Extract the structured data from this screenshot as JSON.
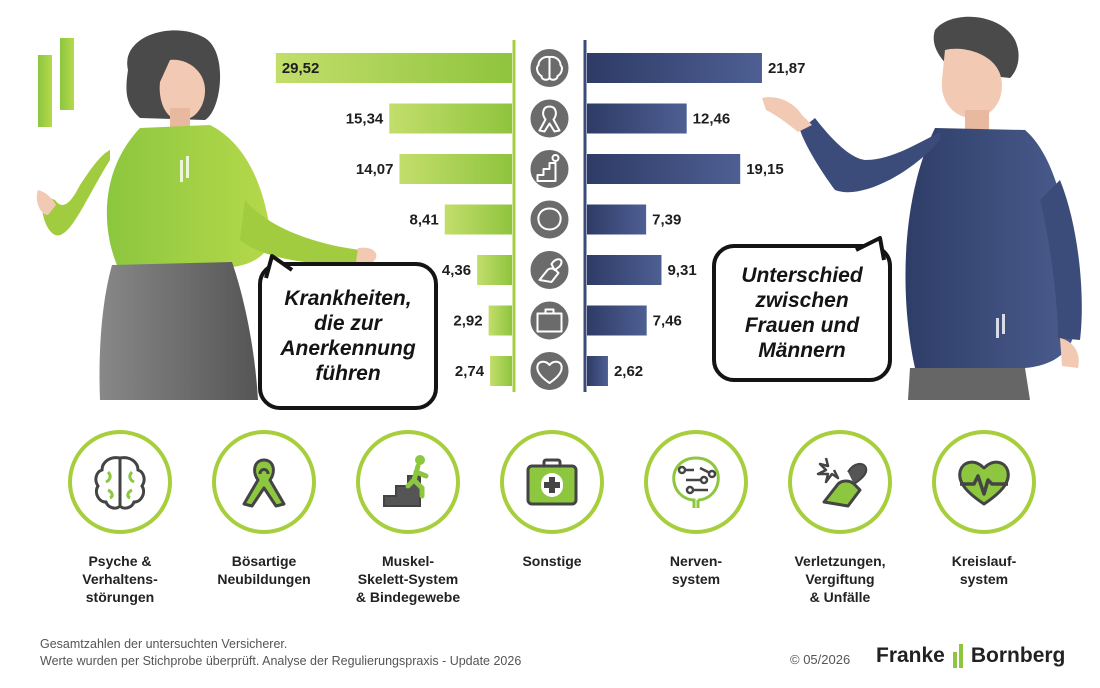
{
  "chart_data": {
    "type": "bar",
    "orientation": "horizontal-diverging",
    "categories": [
      "Psyche & Verhaltensstörungen",
      "Bösartige Neubildungen",
      "Muskel-Skelett-System & Bindegewebe",
      "Nervensystem",
      "Verletzungen, Vergiftung & Unfälle",
      "Sonstige",
      "Kreislaufsystem"
    ],
    "series": [
      {
        "values": [
          29.52,
          15.34,
          14.07,
          8.41,
          4.36,
          2.92,
          2.74
        ],
        "value_labels": [
          "29,52",
          "15,34",
          "14,07",
          "8,41",
          "4,36",
          "2,92",
          "2,74"
        ],
        "color": "#a7cf3d",
        "direction": "left"
      },
      {
        "values": [
          21.87,
          12.46,
          19.15,
          7.39,
          9.31,
          7.46,
          2.62
        ],
        "value_labels": [
          "21,87",
          "12,46",
          "19,15",
          "7,39",
          "9,31",
          "7,46",
          "2,62"
        ],
        "color": "#3c4c7a",
        "direction": "right"
      }
    ],
    "row_icons": [
      "brain-icon",
      "ribbon-icon",
      "stairs-icon",
      "nervous-system-icon",
      "injury-icon",
      "first-aid-icon",
      "heart-pulse-icon"
    ]
  },
  "bubbles": {
    "left": "Krankheiten,\ndie zur\nAnerkennung\nführen",
    "right": "Unterschied\nzwischen\nFrauen und\nMännern"
  },
  "categories_row": [
    {
      "icon": "brain-icon",
      "label": "Psyche &\nVerhaltens-\nstörungen"
    },
    {
      "icon": "ribbon-icon",
      "label": "Bösartige\nNeubildungen"
    },
    {
      "icon": "stairs-icon",
      "label": "Muskel-\nSkelett-System\n& Bindegewebe"
    },
    {
      "icon": "first-aid-icon",
      "label": "Sonstige"
    },
    {
      "icon": "nervous-system-icon",
      "label": "Nerven-\nsystem"
    },
    {
      "icon": "injury-icon",
      "label": "Verletzungen,\nVergiftung\n& Unfälle"
    },
    {
      "icon": "heart-pulse-icon",
      "label": "Kreislauf-\nsystem"
    }
  ],
  "footer": {
    "line1": "Gesamtzahlen der untersuchten Versicherer.",
    "line2": "Werte wurden per Stichprobe überprüft. Analyse der Regulierungspraxis - Update 2026",
    "copyright": "© 05/2026",
    "brand_left": "Franke",
    "brand_right": "Bornberg"
  },
  "colors": {
    "green": "#a7cf3d",
    "navy": "#3c4c7a",
    "grey": "#6b6b6b"
  }
}
